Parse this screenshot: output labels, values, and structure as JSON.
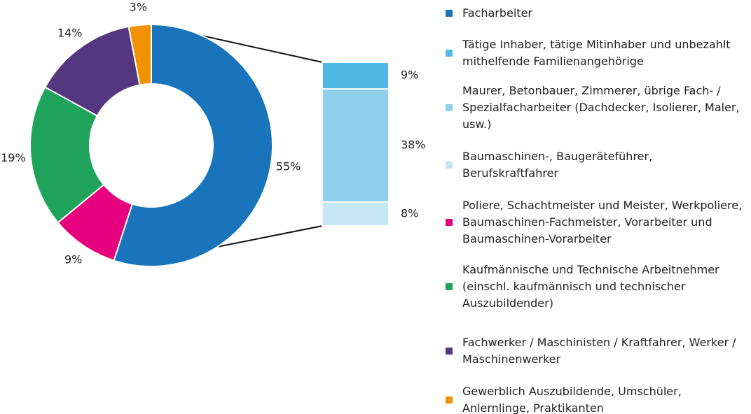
{
  "chart_data": [
    {
      "type": "pie",
      "donut": true,
      "categories": [
        "Facharbeiter",
        "Poliere, Schachtmeister und Meister, Werkpoliere, Baumaschinen-Fachmeister, Vorarbeiter und Baumaschinen-Vorarbeiter",
        "Kaufmännische und Technische Arbeitnehmer (einschl. kaufmännisch und technischer Auszubildender)",
        "Fachwerker / Maschinisten / Kraftfahrer, Werker / Maschinenwerker",
        "Gewerblich Auszubildende, Umschüler, Anlernlinge, Praktikanten"
      ],
      "values": [
        55,
        9,
        19,
        14,
        3
      ],
      "value_labels": [
        "55%",
        "9%",
        "19%",
        "14%",
        "3%"
      ],
      "colors": [
        "#1a74bb",
        "#e6007e",
        "#1fa35b",
        "#55377f",
        "#f39200"
      ]
    },
    {
      "type": "bar",
      "stacked": true,
      "series": [
        {
          "name": "Tätige Inhaber, tätige Mitinhaber und unbezahlt mithelfende Familienangehörige",
          "color": "#4fb8e3",
          "values": [
            9
          ],
          "value_labels": [
            "9%"
          ]
        },
        {
          "name": "Maurer, Betonbauer, Zimmerer, übrige Fach- / Spezialfacharbeiter (Dachdecker, Isolierer, Maler, usw.)",
          "color": "#8fd0ea",
          "values": [
            38
          ],
          "value_labels": [
            "38%"
          ]
        },
        {
          "name": "Baumaschinen-, Baugeräteführer, Berufskraftfahrer",
          "color": "#c5e6f3",
          "values": [
            8
          ],
          "value_labels": [
            "8%"
          ]
        }
      ]
    }
  ]
}
